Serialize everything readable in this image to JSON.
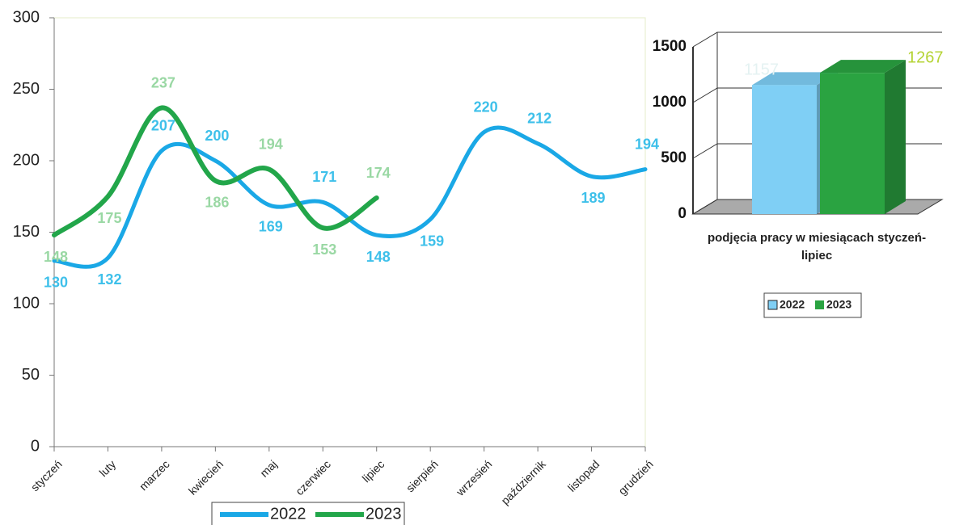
{
  "chart_data": [
    {
      "type": "line",
      "categories": [
        "styczeń",
        "luty",
        "marzec",
        "kwiecień",
        "maj",
        "czerwiec",
        "lipiec",
        "sierpień",
        "wrzesień",
        "październik",
        "listopad",
        "grudzień"
      ],
      "series": [
        {
          "name": "2022",
          "color": "#1aa8e6",
          "values": [
            130,
            132,
            207,
            200,
            169,
            171,
            148,
            159,
            220,
            212,
            189,
            194
          ]
        },
        {
          "name": "2023",
          "color": "#22a64a",
          "values": [
            148,
            175,
            237,
            186,
            194,
            153,
            174,
            null,
            null,
            null,
            null,
            null
          ]
        }
      ],
      "ylim": [
        0,
        300
      ],
      "yticks": [
        0,
        50,
        100,
        150,
        200,
        250,
        300
      ]
    },
    {
      "type": "bar3d",
      "x_label": "podjęcia pracy w miesiącach styczeń-lipiec",
      "categories": [
        null
      ],
      "series": [
        {
          "name": "2022",
          "color": "#7fcff5",
          "values": [
            1157
          ]
        },
        {
          "name": "2023",
          "color": "#2aa341",
          "values": [
            1267
          ]
        }
      ],
      "ylim": [
        0,
        1500
      ],
      "yticks": [
        0,
        500,
        1000,
        1500
      ]
    }
  ]
}
